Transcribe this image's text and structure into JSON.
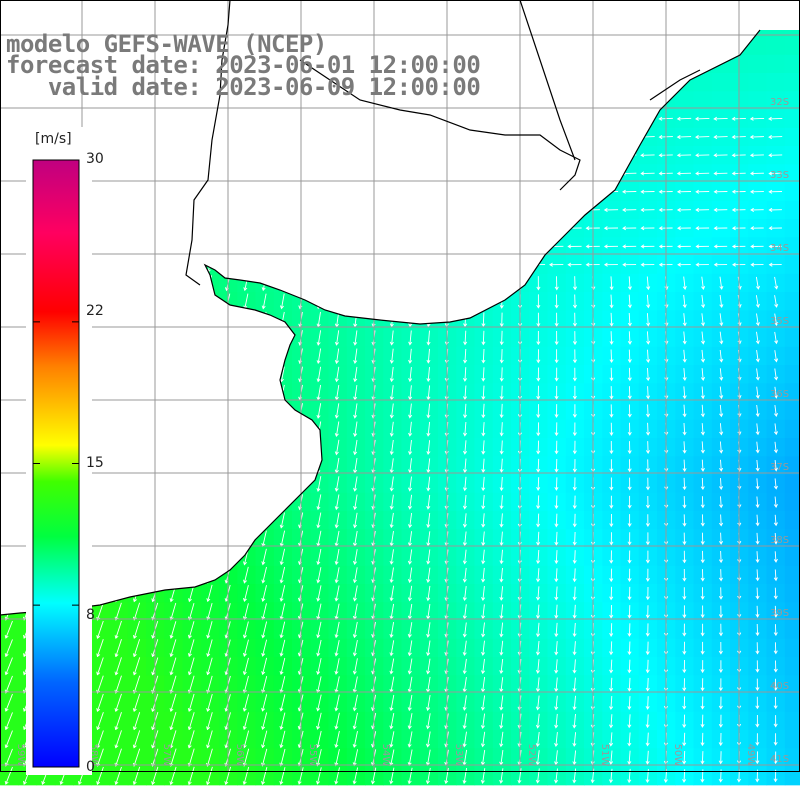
{
  "title": {
    "line1": "modelo GEFS-WAVE (NCEP)",
    "line2": "forecast date: 2023-06-01 12:00:00",
    "line3": "   valid date: 2023-06-09 12:00:00"
  },
  "colorbar": {
    "unit": "[m/s]",
    "ticks": [
      "30",
      "22",
      "15",
      "8",
      "0"
    ],
    "tick_values": [
      30,
      22,
      15,
      8,
      0
    ],
    "range": [
      0,
      30
    ],
    "colors": [
      "#0000ff",
      "#00a0ff",
      "#00ffff",
      "#00ff40",
      "#60ff00",
      "#ffff00",
      "#ff8000",
      "#ff0000",
      "#ff0060",
      "#c00080"
    ]
  },
  "map": {
    "lon_range": [
      -59,
      -48.5
    ],
    "lat_range": [
      -41.5,
      -30.5
    ],
    "lat_labels": [
      "32S",
      "33S",
      "34S",
      "35S",
      "36S",
      "37S",
      "38S",
      "39S",
      "40S",
      "41S"
    ],
    "lon_labels": [
      "59W",
      "58W",
      "57W",
      "56W",
      "55W",
      "54W",
      "53W",
      "52W",
      "51W",
      "50W",
      "49W"
    ],
    "land_color": "#ffffff",
    "grid_color": "#999999",
    "coast_color": "#000000",
    "arrow_color": "#ffffff",
    "field": "wind speed and direction",
    "units": "m/s"
  }
}
